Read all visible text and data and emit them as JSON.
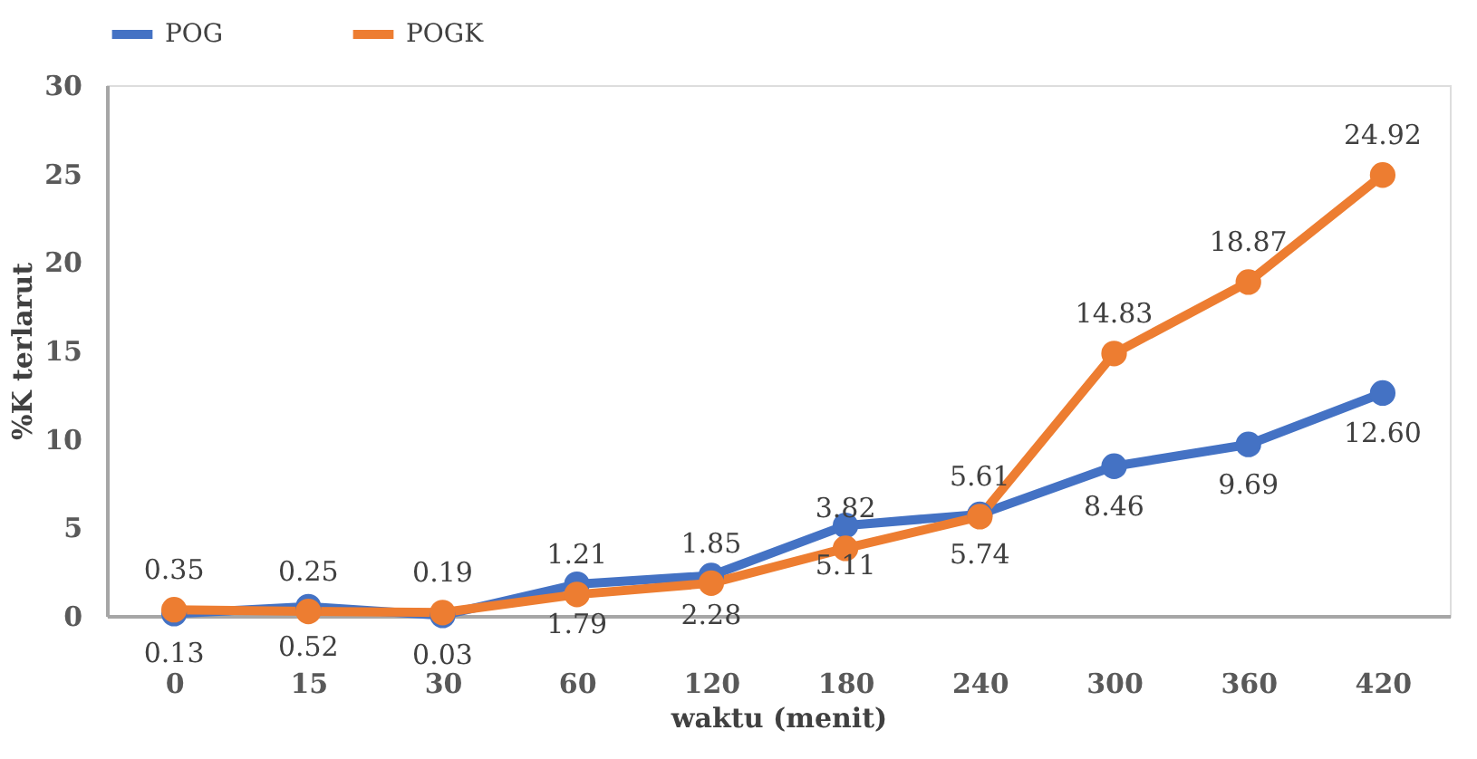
{
  "chart_data": {
    "type": "line",
    "xlabel": "waktu (menit)",
    "ylabel": "%K terlarut",
    "categories": [
      "0",
      "15",
      "30",
      "60",
      "120",
      "180",
      "240",
      "300",
      "360",
      "420"
    ],
    "series": [
      {
        "name": "POG",
        "color": "#4472c4",
        "values": [
          0.13,
          0.52,
          0.03,
          1.79,
          2.28,
          5.11,
          5.74,
          8.46,
          9.69,
          12.6
        ],
        "value_labels": [
          "0.13",
          "0.52",
          "0.03",
          "1.79",
          "2.28",
          "5.11",
          "5.74",
          "8.46",
          "9.69",
          "12.60"
        ]
      },
      {
        "name": "POGK",
        "color": "#ed7d31",
        "values": [
          0.35,
          0.25,
          0.19,
          1.21,
          1.85,
          3.82,
          5.61,
          14.83,
          18.87,
          24.92
        ],
        "value_labels": [
          "0.35",
          "0.25",
          "0.19",
          "1.21",
          "1.85",
          "3.82",
          "5.61",
          "14.83",
          "18.87",
          "24.92"
        ]
      }
    ],
    "ylim": [
      0,
      30
    ],
    "yticks": [
      0,
      5,
      10,
      15,
      20,
      25,
      30
    ],
    "grid": false,
    "legend": "top",
    "marker": "circle",
    "line_style": "solid"
  }
}
